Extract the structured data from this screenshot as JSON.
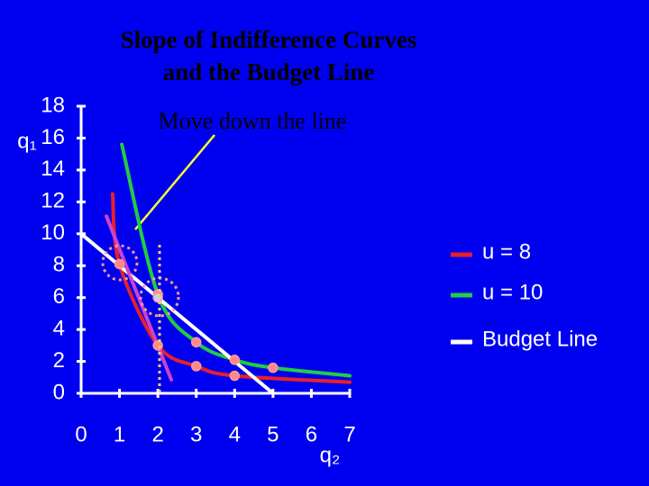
{
  "chart_data": {
    "type": "line",
    "title": [
      "Slope of Indifference Curves",
      "and the Budget Line"
    ],
    "annotation": "Move down the line",
    "xlabel": "q₂",
    "ylabel": "q₁",
    "xlim": [
      0,
      7
    ],
    "ylim": [
      0,
      18
    ],
    "xticks": [
      0,
      1,
      2,
      3,
      4,
      5,
      6,
      7
    ],
    "yticks": [
      0,
      2,
      4,
      6,
      8,
      10,
      12,
      14,
      16,
      18
    ],
    "legend": "right",
    "series": [
      {
        "name": "u = 8",
        "color": "#e8202a",
        "x": [
          0.82,
          1,
          2,
          3,
          4,
          7
        ],
        "y": [
          12.5,
          8.1,
          3,
          1.7,
          1.1,
          0.7
        ]
      },
      {
        "name": "u = 10",
        "color": "#22cc44",
        "x": [
          1.06,
          2,
          3,
          4,
          5,
          7
        ],
        "y": [
          15.6,
          6.2,
          3.2,
          2.1,
          1.6,
          1.1
        ]
      },
      {
        "name": "Budget Line",
        "color": "#ffffff",
        "x": [
          0,
          2,
          5
        ],
        "y": [
          10,
          6,
          0
        ]
      },
      {
        "color": "#cc44cc",
        "x": [
          0.66,
          2.35
        ],
        "y": [
          11.1,
          0.85
        ]
      }
    ]
  }
}
